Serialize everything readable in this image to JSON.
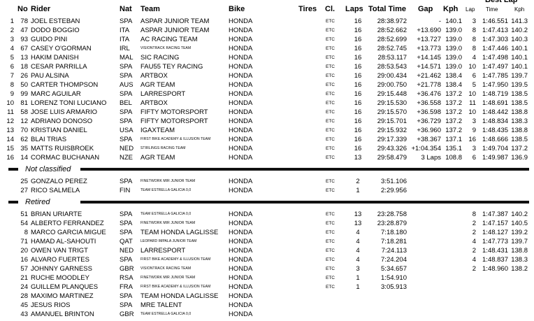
{
  "header": {
    "no": "No",
    "rider": "Rider",
    "nat": "Nat",
    "team": "Team",
    "bike": "Bike",
    "tires": "Tires",
    "cl": "Cl.",
    "laps": "Laps",
    "total": "Total Time",
    "gap": "Gap",
    "kph": "Kph",
    "best": "Best Lap",
    "best_lap": "Lap",
    "best_time": "Time",
    "best_kph": "Kph"
  },
  "sections": [
    {
      "rows": [
        {
          "pos": "1",
          "no": "78",
          "rider": "JOEL ESTEBAN",
          "nat": "SPA",
          "team": "ASPAR JUNIOR TEAM",
          "bike": "HONDA",
          "cl": "ETC",
          "laps": "16",
          "total": "28:38.972",
          "gap": "-",
          "kph": "140.1",
          "best_lap": "3",
          "best_time": "1:46.551",
          "best_kph": "141.3"
        },
        {
          "pos": "2",
          "no": "47",
          "rider": "DODO BOGGIO",
          "nat": "ITA",
          "team": "ASPAR JUNIOR TEAM",
          "bike": "HONDA",
          "cl": "ETC",
          "laps": "16",
          "total": "28:52.662",
          "gap": "+13.690",
          "kph": "139.0",
          "best_lap": "8",
          "best_time": "1:47.413",
          "best_kph": "140.2"
        },
        {
          "pos": "3",
          "no": "93",
          "rider": "GUIDO PINI",
          "nat": "ITA",
          "team": "AC RACING TEAM",
          "bike": "HONDA",
          "cl": "ETC",
          "laps": "16",
          "total": "28:52.699",
          "gap": "+13.727",
          "kph": "139.0",
          "best_lap": "8",
          "best_time": "1:47.303",
          "best_kph": "140.3"
        },
        {
          "pos": "4",
          "no": "67",
          "rider": "CASEY O'GORMAN",
          "nat": "IRL",
          "team": "VISIONTRACK RACING TEAM",
          "bike": "HONDA",
          "cl": "ETC",
          "laps": "16",
          "total": "28:52.745",
          "gap": "+13.773",
          "kph": "139.0",
          "best_lap": "8",
          "best_time": "1:47.446",
          "best_kph": "140.1"
        },
        {
          "pos": "5",
          "no": "13",
          "rider": "HAKIM DANISH",
          "nat": "MAL",
          "team": "SIC RACING",
          "bike": "HONDA",
          "cl": "ETC",
          "laps": "16",
          "total": "28:53.117",
          "gap": "+14.145",
          "kph": "139.0",
          "best_lap": "4",
          "best_time": "1:47.498",
          "best_kph": "140.1"
        },
        {
          "pos": "6",
          "no": "18",
          "rider": "CESAR PARRILLA",
          "nat": "SPA",
          "team": "FAU55 TEY RACING",
          "bike": "HONDA",
          "cl": "ETC",
          "laps": "16",
          "total": "28:53.543",
          "gap": "+14.571",
          "kph": "139.0",
          "best_lap": "10",
          "best_time": "1:47.497",
          "best_kph": "140.1"
        },
        {
          "pos": "7",
          "no": "26",
          "rider": "PAU ALSINA",
          "nat": "SPA",
          "team": "ARTBOX",
          "bike": "HONDA",
          "cl": "ETC",
          "laps": "16",
          "total": "29:00.434",
          "gap": "+21.462",
          "kph": "138.4",
          "best_lap": "6",
          "best_time": "1:47.785",
          "best_kph": "139.7"
        },
        {
          "pos": "8",
          "no": "50",
          "rider": "CARTER THOMPSON",
          "nat": "AUS",
          "team": "AGR TEAM",
          "bike": "HONDA",
          "cl": "ETC",
          "laps": "16",
          "total": "29:00.750",
          "gap": "+21.778",
          "kph": "138.4",
          "best_lap": "5",
          "best_time": "1:47.950",
          "best_kph": "139.5"
        },
        {
          "pos": "9",
          "no": "99",
          "rider": "MARC AGUILAR",
          "nat": "SPA",
          "team": "LARRESPORT",
          "bike": "HONDA",
          "cl": "ETC",
          "laps": "16",
          "total": "29:15.448",
          "gap": "+36.476",
          "kph": "137.2",
          "best_lap": "10",
          "best_time": "1:48.719",
          "best_kph": "138.5"
        },
        {
          "pos": "10",
          "no": "81",
          "rider": "LORENZ TONI LUCIANO",
          "nat": "BEL",
          "team": "ARTBOX",
          "bike": "HONDA",
          "cl": "ETC",
          "laps": "16",
          "total": "29:15.530",
          "gap": "+36.558",
          "kph": "137.2",
          "best_lap": "11",
          "best_time": "1:48.691",
          "best_kph": "138.5"
        },
        {
          "pos": "11",
          "no": "58",
          "rider": "JOSE LUIS ARMARIO",
          "nat": "SPA",
          "team": "FIFTY MOTORSPORT",
          "bike": "HONDA",
          "cl": "ETC",
          "laps": "16",
          "total": "29:15.570",
          "gap": "+36.598",
          "kph": "137.2",
          "best_lap": "10",
          "best_time": "1:48.442",
          "best_kph": "138.8"
        },
        {
          "pos": "12",
          "no": "12",
          "rider": "ADRIANO DONOSO",
          "nat": "SPA",
          "team": "FIFTY MOTORSPORT",
          "bike": "HONDA",
          "cl": "ETC",
          "laps": "16",
          "total": "29:15.701",
          "gap": "+36.729",
          "kph": "137.2",
          "best_lap": "3",
          "best_time": "1:48.834",
          "best_kph": "138.3"
        },
        {
          "pos": "13",
          "no": "70",
          "rider": "KRISTIAN DANIEL",
          "nat": "USA",
          "team": "IGAXTEAM",
          "bike": "HONDA",
          "cl": "ETC",
          "laps": "16",
          "total": "29:15.932",
          "gap": "+36.960",
          "kph": "137.2",
          "best_lap": "9",
          "best_time": "1:48.435",
          "best_kph": "138.8"
        },
        {
          "pos": "14",
          "no": "62",
          "rider": "BLAI TRIAS",
          "nat": "SPA",
          "team": "FIRST BIKE ACADEMY & ILLUSION TEAM",
          "bike": "HONDA",
          "cl": "ETC",
          "laps": "16",
          "total": "29:17.339",
          "gap": "+38.367",
          "kph": "137.1",
          "best_lap": "16",
          "best_time": "1:48.666",
          "best_kph": "138.5"
        },
        {
          "pos": "15",
          "no": "35",
          "rider": "MATTS RUISBROEK",
          "nat": "NED",
          "team": "STIRLINGS RACING TEAM",
          "bike": "HONDA",
          "cl": "ETC",
          "laps": "16",
          "total": "29:43.326",
          "gap": "+1:04.354",
          "kph": "135.1",
          "best_lap": "3",
          "best_time": "1:49.704",
          "best_kph": "137.2"
        },
        {
          "pos": "16",
          "no": "14",
          "rider": "CORMAC BUCHANAN",
          "nat": "NZE",
          "team": "AGR TEAM",
          "bike": "HONDA",
          "cl": "ETC",
          "laps": "13",
          "total": "29:58.479",
          "gap": "3 Laps",
          "kph": "108.8",
          "best_lap": "6",
          "best_time": "1:49.987",
          "best_kph": "136.9"
        }
      ]
    },
    {
      "title": "Not classified",
      "rows": [
        {
          "no": "25",
          "rider": "GONZALO PEREZ",
          "nat": "SPA",
          "team": "FINETWORK MIR JUNIOR TEAM",
          "bike": "HONDA",
          "cl": "ETC",
          "laps": "2",
          "total": "3:51.106"
        },
        {
          "no": "27",
          "rider": "RICO SALMELA",
          "nat": "FIN",
          "team": "TEAM ESTRELLA GALICIA 0,0",
          "bike": "HONDA",
          "cl": "ETC",
          "laps": "1",
          "total": "2:29.956"
        }
      ]
    },
    {
      "title": "Retired",
      "rows": [
        {
          "no": "51",
          "rider": "BRIAN URIARTE",
          "nat": "SPA",
          "team": "TEAM ESTRELLA GALICIA 0,0",
          "bike": "HONDA",
          "cl": "ETC",
          "laps": "13",
          "total": "23:28.758",
          "best_lap": "8",
          "best_time": "1:47.387",
          "best_kph": "140.2"
        },
        {
          "no": "54",
          "rider": "ALBERTO FERRANDEZ",
          "nat": "SPA",
          "team": "FINETWORK MIR JUNIOR TEAM",
          "bike": "HONDA",
          "cl": "ETC",
          "laps": "13",
          "total": "23:28.879",
          "best_lap": "2",
          "best_time": "1:47.157",
          "best_kph": "140.5"
        },
        {
          "no": "8",
          "rider": "MARCO GARCIA MIGUE",
          "nat": "SPA",
          "team": "TEAM HONDA LAGLISSE",
          "bike": "HONDA",
          "cl": "ETC",
          "laps": "4",
          "total": "7:18.180",
          "best_lap": "2",
          "best_time": "1:48.127",
          "best_kph": "139.2"
        },
        {
          "no": "71",
          "rider": "HAMAD AL-SAHOUTI",
          "nat": "QAT",
          "team": "LEOPARD IMPALA JUNIOR TEAM",
          "bike": "HONDA",
          "cl": "ETC",
          "laps": "4",
          "total": "7:18.281",
          "best_lap": "4",
          "best_time": "1:47.773",
          "best_kph": "139.7"
        },
        {
          "no": "20",
          "rider": "OWEN VAN TRIGT",
          "nat": "NED",
          "team": "LARRESPORT",
          "bike": "HONDA",
          "cl": "ETC",
          "laps": "4",
          "total": "7:24.113",
          "best_lap": "2",
          "best_time": "1:48.431",
          "best_kph": "138.8"
        },
        {
          "no": "16",
          "rider": "ALVARO FUERTES",
          "nat": "SPA",
          "team": "FIRST BIKE ACADEMY & ILLUSION TEAM",
          "bike": "HONDA",
          "cl": "ETC",
          "laps": "4",
          "total": "7:24.204",
          "best_lap": "4",
          "best_time": "1:48.837",
          "best_kph": "138.3"
        },
        {
          "no": "57",
          "rider": "JOHNNY GARNESS",
          "nat": "GBR",
          "team": "VISIONTRACK RACING TEAM",
          "bike": "HONDA",
          "cl": "ETC",
          "laps": "3",
          "total": "5:34.657",
          "best_lap": "2",
          "best_time": "1:48.960",
          "best_kph": "138.2"
        },
        {
          "no": "21",
          "rider": "RUCHE MOODLEY",
          "nat": "RSA",
          "team": "FINETWORK MIR JUNIOR TEAM",
          "bike": "HONDA",
          "cl": "ETC",
          "laps": "1",
          "total": "1:54.910"
        },
        {
          "no": "24",
          "rider": "GUILLEM PLANQUES",
          "nat": "FRA",
          "team": "FIRST BIKE ACADEMY & ILLUSION TEAM",
          "bike": "HONDA",
          "cl": "ETC",
          "laps": "1",
          "total": "3:05.913"
        },
        {
          "no": "28",
          "rider": "MAXIMO MARTINEZ",
          "nat": "SPA",
          "team": "TEAM HONDA LAGLISSE",
          "bike": "HONDA"
        },
        {
          "no": "45",
          "rider": "JESUS RIOS",
          "nat": "SPA",
          "team": "MRE TALENT",
          "bike": "HONDA"
        },
        {
          "no": "43",
          "rider": "AMANUEL BRINTON",
          "nat": "GBR",
          "team": "TEAM ESTRELLA GALICIA 0,0",
          "bike": "HONDA"
        }
      ]
    }
  ]
}
